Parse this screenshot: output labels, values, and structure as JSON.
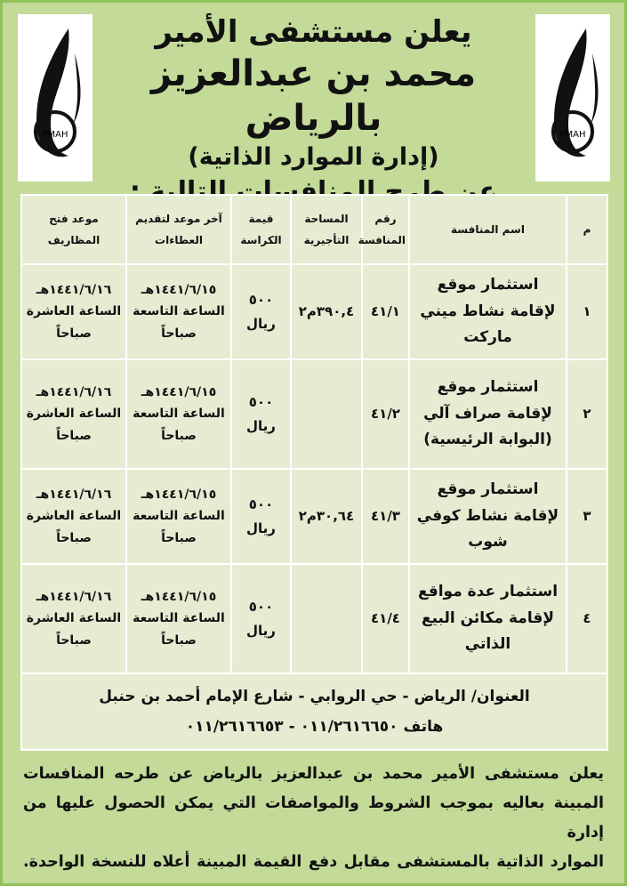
{
  "header": {
    "line1": "يعلن مستشفى الأمير",
    "line2": "محمد بن عبدالعزيز بالرياض",
    "line3": "(إدارة الموارد الذاتية)",
    "line4": "عن طرح المنافسات التالية :"
  },
  "logo": {
    "text": "PMAH"
  },
  "table": {
    "headers": [
      "م",
      "اسم المنافسة",
      "رقم المنافسة",
      "المساحة التأجيرية",
      "قيمة الكراسة",
      "آخر موعد لتقديم العطاءات",
      "موعد فتح المظاريف"
    ],
    "rows": [
      {
        "n": "١",
        "name": "استثمار موقع لإقامة نشاط ميني ماركت",
        "num": "٤١/١",
        "area": "٣٩٠,٤م٢",
        "price": "٥٠٠ ريال",
        "deadline": "١٤٤١/٦/١٥هـ الساعة التاسعة صباحاً",
        "opening": "١٤٤١/٦/١٦هـ الساعة العاشرة صباحاً"
      },
      {
        "n": "٢",
        "name": "استثمار موقع لإقامة صراف آلي (البوابة الرئيسية)",
        "num": "٤١/٢",
        "area": "",
        "price": "٥٠٠ ريال",
        "deadline": "١٤٤١/٦/١٥هـ الساعة التاسعة صباحاً",
        "opening": "١٤٤١/٦/١٦هـ الساعة العاشرة صباحاً"
      },
      {
        "n": "٣",
        "name": "استثمار موقع لإقامة نشاط كوفي شوب",
        "num": "٤١/٣",
        "area": "٣٠,٦٤م٢",
        "price": "٥٠٠ ريال",
        "deadline": "١٤٤١/٦/١٥هـ الساعة التاسعة صباحاً",
        "opening": "١٤٤١/٦/١٦هـ الساعة العاشرة صباحاً"
      },
      {
        "n": "٤",
        "name": "استثمار عدة مواقع لإقامة مكائن البيع الذاتي",
        "num": "٤١/٤",
        "area": "",
        "price": "٥٠٠ ريال",
        "deadline": "١٤٤١/٦/١٥هـ الساعة التاسعة صباحاً",
        "opening": "١٤٤١/٦/١٦هـ الساعة العاشرة صباحاً"
      }
    ],
    "address": "العنوان/ الرياض - حي الروابي - شارع الإمام أحمد بن حنبل",
    "phone": "هاتف ٠١١/٢٦١٦٦٥٠ - ٠١١/٢٦١٦٦٥٣"
  },
  "footer": {
    "lines": [
      "يعلن مستشفى الأمير محمد بن عبدالعزيز بالرياض عن طرحه المنافسات",
      "المبينة بعاليه بموجب الشروط والمواصفات التي يمكن الحصول عليها من إدارة",
      "الموارد الذاتية بالمستشفى مقابل دفع القيمة المبينة أعلاه للنسخة الواحدة."
    ]
  },
  "colors": {
    "background": "#c3da98",
    "border": "#8fc25a",
    "table": "#e6ecd2"
  }
}
